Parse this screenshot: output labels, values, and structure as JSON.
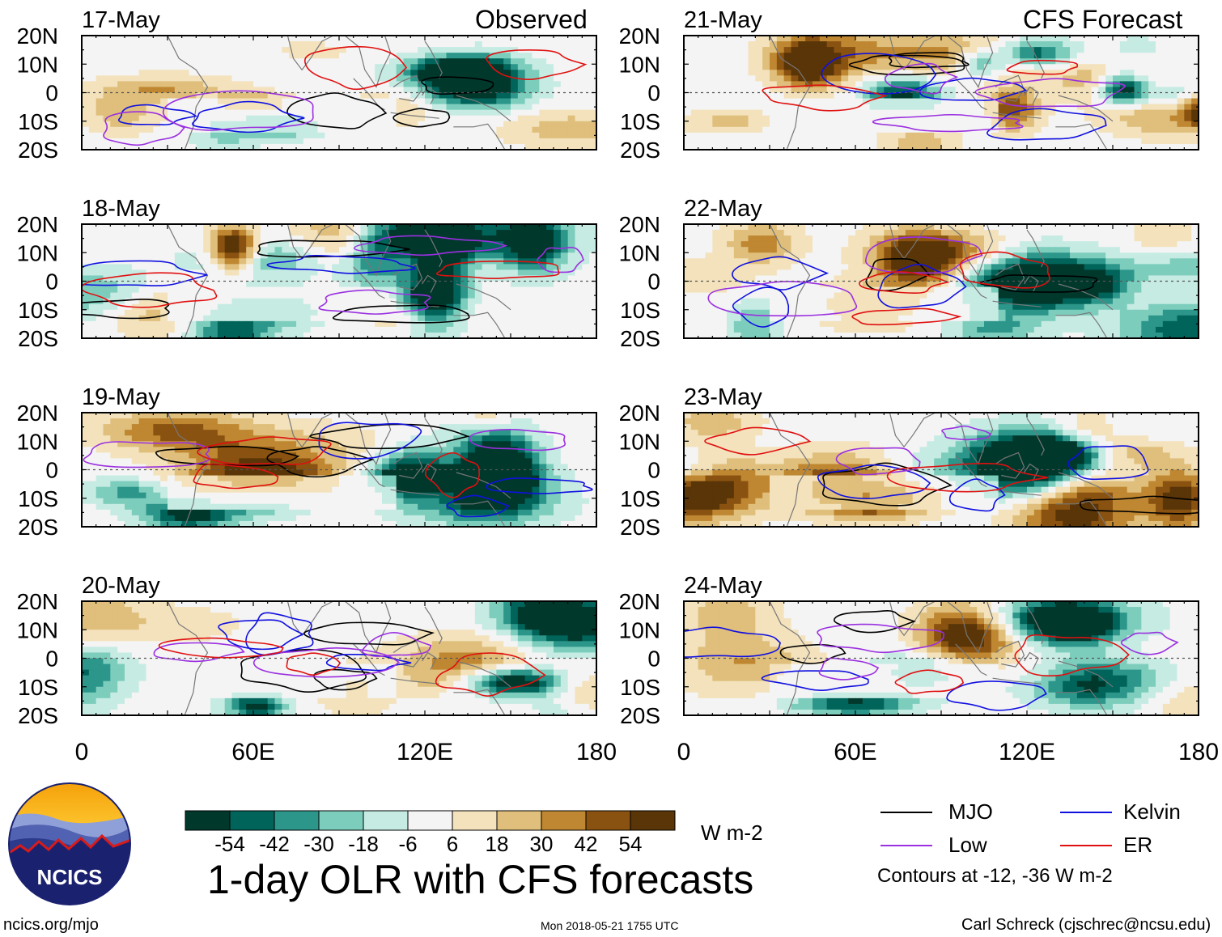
{
  "title": "1-day OLR with CFS forecasts",
  "panel_headers": {
    "observed": "Observed",
    "forecast": "CFS Forecast"
  },
  "chart_data": {
    "type": "heatmap",
    "title": "1-day OLR with CFS forecasts",
    "variable": "OLR anomaly",
    "units": "W m-2",
    "lon_range": [
      0,
      180
    ],
    "lat_range": [
      -20,
      20
    ],
    "x_ticks": [
      "0",
      "60E",
      "120E",
      "180"
    ],
    "y_ticks": [
      "20N",
      "10N",
      "0",
      "10S",
      "20S"
    ],
    "columns": [
      {
        "name": "Observed",
        "dates": [
          "17-May",
          "18-May",
          "19-May",
          "20-May"
        ]
      },
      {
        "name": "CFS Forecast",
        "dates": [
          "21-May",
          "22-May",
          "23-May",
          "24-May"
        ]
      }
    ],
    "colorbar": {
      "levels": [
        -54,
        -42,
        -30,
        -18,
        -6,
        6,
        18,
        30,
        42,
        54
      ],
      "labels": [
        "-54",
        "-42",
        "-30",
        "-18",
        "-6",
        "6",
        "18",
        "30",
        "42",
        "54"
      ],
      "colors": [
        "#00382c",
        "#00645a",
        "#2c968a",
        "#7dcdbd",
        "#c6ebe3",
        "#f4f4f4",
        "#f3e2bc",
        "#dfbf7b",
        "#bf8731",
        "#8a5210",
        "#5a3507"
      ]
    },
    "legend": [
      {
        "name": "MJO",
        "color": "#000000"
      },
      {
        "name": "Kelvin",
        "color": "#1010e0"
      },
      {
        "name": "Low",
        "color": "#9b30e0"
      },
      {
        "name": "ER",
        "color": "#e01010"
      }
    ],
    "contour_note": "Contours at -12, -36 W m-2"
  },
  "footer": {
    "url": "ncics.org/mjo",
    "timestamp": "Mon 2018-05-21 1755 UTC",
    "credit": "Carl Schreck (cjschrec@ncsu.edu)"
  },
  "logo": {
    "text": "NCICS"
  }
}
